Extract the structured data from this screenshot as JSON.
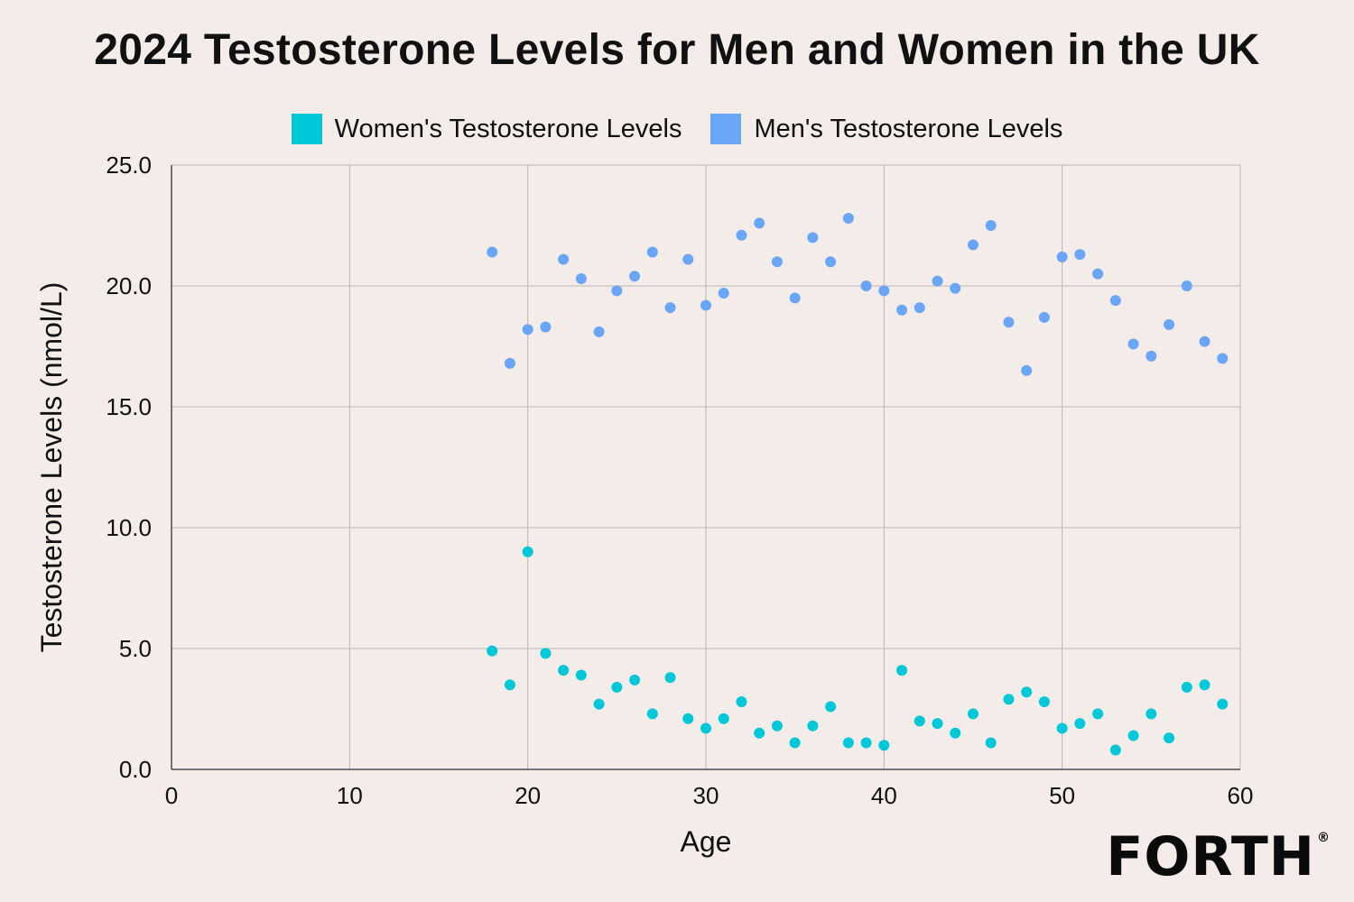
{
  "chart_data": {
    "type": "scatter",
    "title": "2024 Testosterone Levels for Men and Women in the UK",
    "xlabel": "Age",
    "ylabel": "Testosterone Levels (nmol/L)",
    "xlim": [
      0,
      60
    ],
    "ylim": [
      0,
      25
    ],
    "xticks": [
      0,
      10,
      20,
      30,
      40,
      50,
      60
    ],
    "xtick_labels": [
      "0",
      "10",
      "20",
      "30",
      "40",
      "50",
      "60"
    ],
    "yticks": [
      0,
      5,
      10,
      15,
      20,
      25
    ],
    "ytick_labels": [
      "0.0",
      "5.0",
      "10.0",
      "15.0",
      "20.0",
      "25.0"
    ],
    "grid": true,
    "legend_position": "top-center",
    "x": [
      18,
      19,
      20,
      21,
      22,
      23,
      24,
      25,
      26,
      27,
      28,
      29,
      30,
      31,
      32,
      33,
      34,
      35,
      36,
      37,
      38,
      39,
      40,
      41,
      42,
      43,
      44,
      45,
      46,
      47,
      48,
      49,
      50,
      51,
      52,
      53,
      54,
      55,
      56,
      57,
      58,
      59
    ],
    "series": [
      {
        "name": "Women's Testosterone Levels",
        "color": "#00c8d8",
        "values": [
          4.9,
          3.5,
          9.0,
          4.8,
          4.1,
          3.9,
          2.7,
          3.4,
          3.7,
          2.3,
          3.8,
          2.1,
          1.7,
          2.1,
          2.8,
          1.5,
          1.8,
          1.1,
          1.8,
          2.6,
          1.1,
          1.1,
          1.0,
          4.1,
          2.0,
          1.9,
          1.5,
          2.3,
          1.1,
          2.9,
          3.2,
          2.8,
          1.7,
          1.9,
          2.3,
          0.8,
          1.4,
          2.3,
          1.3,
          3.4,
          3.5,
          2.7
        ]
      },
      {
        "name": "Men's Testosterone Levels",
        "color": "#6aa6f8",
        "values": [
          21.4,
          16.8,
          18.2,
          18.3,
          21.1,
          20.3,
          18.1,
          19.8,
          20.4,
          21.4,
          19.1,
          21.1,
          19.2,
          19.7,
          22.1,
          22.6,
          21.0,
          19.5,
          22.0,
          21.0,
          22.8,
          20.0,
          19.8,
          19.0,
          19.1,
          20.2,
          19.9,
          21.7,
          22.5,
          18.5,
          16.5,
          18.7,
          21.2,
          21.3,
          20.5,
          19.4,
          17.6,
          17.1,
          18.4,
          20.0,
          17.7,
          17.0
        ]
      }
    ]
  },
  "logo": {
    "text": "FORTH",
    "registered": "®"
  },
  "colors": {
    "background": "#f3ece9",
    "grid": "#bdb6b3",
    "axis": "#4a4a4a"
  }
}
